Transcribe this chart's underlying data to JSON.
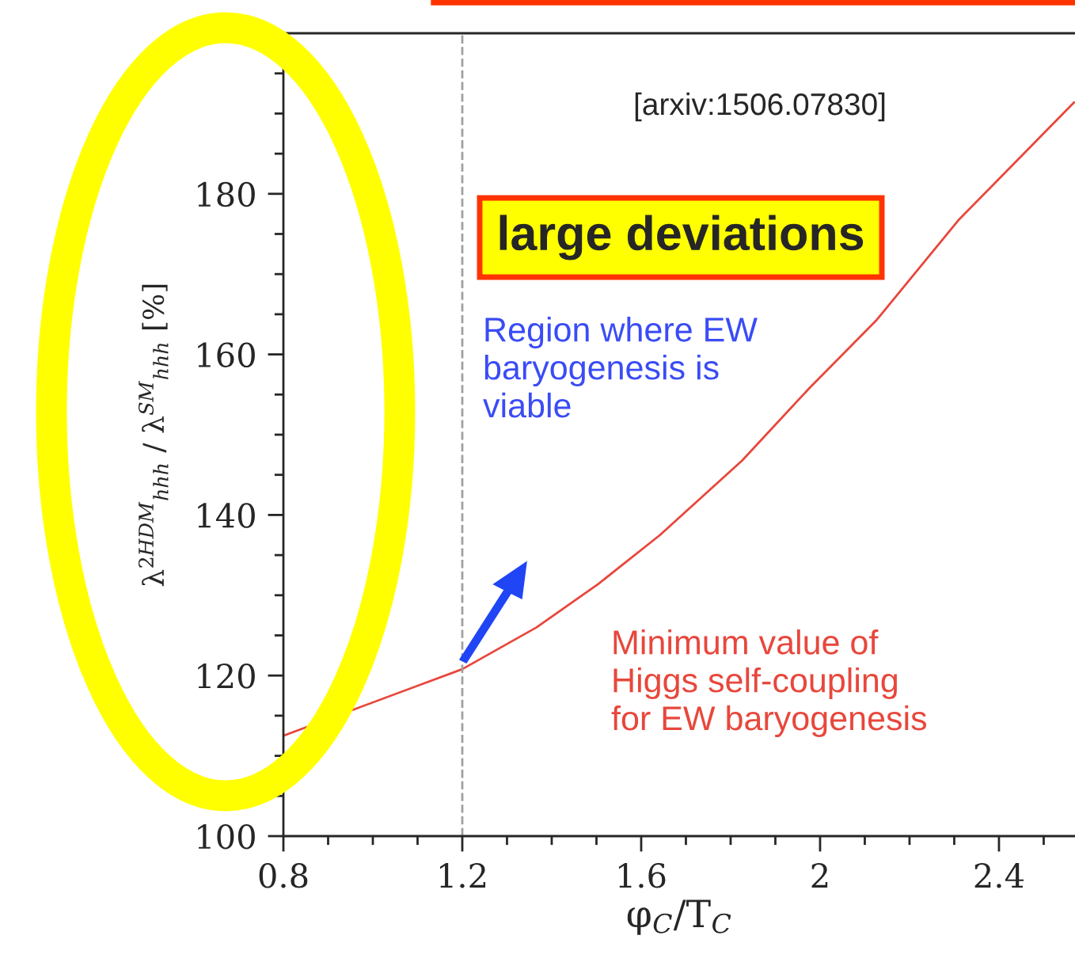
{
  "chart_data": {
    "type": "line",
    "xlabel": "φ$_{C}$/T$_{C}$",
    "ylabel": "λ$^{2HDM}$$_{hhh}$ / λ$^{SM}$$_{hhh}$ [%]",
    "series": [
      {
        "color": "#e8473c",
        "x": [
          0.8,
          1.2,
          1.366,
          1.504,
          1.642,
          1.826,
          1.976,
          2.125,
          2.309,
          2.568
        ],
        "values": [
          112.5,
          120.8,
          126.0,
          131.4,
          137.5,
          146.8,
          155.8,
          164.2,
          176.7,
          191.4
        ]
      }
    ],
    "xlim": [
      0.8,
      2.57
    ],
    "xticks": [
      0.8,
      {
        "value": 0.9,
        "label": null
      },
      {
        "value": 1.0,
        "label": null
      },
      {
        "value": 1.1,
        "label": null
      },
      1.2,
      {
        "value": 1.3,
        "label": null
      },
      {
        "value": 1.4,
        "label": null
      },
      {
        "value": 1.5,
        "label": null
      },
      1.6,
      {
        "value": 1.7,
        "label": null
      },
      {
        "value": 1.8,
        "label": null
      },
      {
        "value": 1.9,
        "label": null
      },
      {
        "value": 2,
        "label": "2"
      },
      {
        "value": 2.1,
        "label": null
      },
      {
        "value": 2.2,
        "label": null
      },
      {
        "value": 2.3,
        "label": null
      },
      2.4,
      {
        "value": 2.5,
        "label": null
      }
    ],
    "ylim": [
      100,
      200
    ],
    "yticks": [
      100,
      {
        "value": 105,
        "label": null
      },
      {
        "value": 110,
        "label": null
      },
      {
        "value": 115,
        "label": null
      },
      120,
      {
        "value": 125,
        "label": null
      },
      {
        "value": 130,
        "label": null
      },
      {
        "value": 135,
        "label": null
      },
      140,
      {
        "value": 145,
        "label": null
      },
      {
        "value": 150,
        "label": null
      },
      {
        "value": 155,
        "label": null
      },
      160,
      {
        "value": 165,
        "label": null
      },
      {
        "value": 170,
        "label": null
      },
      {
        "value": 175,
        "label": null
      },
      180,
      {
        "value": 185,
        "label": null
      },
      {
        "value": 190,
        "label": null
      },
      {
        "value": 195,
        "label": null
      }
    ],
    "ref_lines": [
      {
        "axis": "x",
        "value": 1.2,
        "color": "#a0a0a0",
        "line_style": "dashed"
      }
    ],
    "annotations": [
      "[arxiv:1506.07830]",
      "large deviations",
      "Region where EW\nbaryogenesis is\nviable",
      "Minimum value of\nHiggs self-coupling\nfor EW baryogenesis"
    ],
    "grid": false,
    "legend": false,
    "marker": "none",
    "line_style": "solid"
  }
}
